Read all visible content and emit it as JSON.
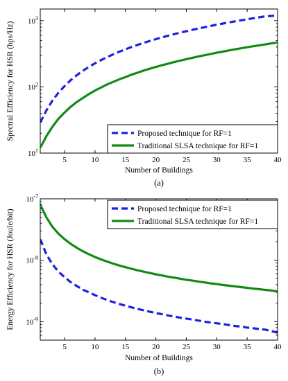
{
  "chart_data": [
    {
      "type": "line",
      "caption": "(a)",
      "xlabel": "Number of Buildings",
      "ylabel": "Spectral Efficiency for HSR (bps/Hz)",
      "xlim": [
        1,
        40
      ],
      "ylim": [
        10,
        1500
      ],
      "yscale": "log",
      "xticks": [
        5,
        10,
        15,
        20,
        25,
        30,
        35,
        40
      ],
      "yticks": [
        {
          "value": 10,
          "base": "10",
          "exp": "1"
        },
        {
          "value": 100,
          "base": "10",
          "exp": "2"
        },
        {
          "value": 1000,
          "base": "10",
          "exp": "3"
        }
      ],
      "legend_position": "bottom-right",
      "x": [
        1,
        2,
        3,
        4,
        5,
        6,
        7,
        8,
        9,
        10,
        11,
        12,
        13,
        14,
        15,
        16,
        17,
        18,
        19,
        20,
        21,
        22,
        23,
        24,
        25,
        26,
        27,
        28,
        29,
        30,
        31,
        32,
        33,
        34,
        35,
        36,
        37,
        38,
        39,
        40
      ],
      "series": [
        {
          "name": "Proposed technique for RF=1",
          "color": "#1f1fe0",
          "dash": "dashed",
          "values": [
            29,
            44,
            62,
            82,
            103,
            126,
            150,
            175,
            200,
            227,
            254,
            282,
            310,
            340,
            369,
            400,
            431,
            462,
            494,
            526,
            559,
            592,
            625,
            659,
            693,
            727,
            762,
            797,
            833,
            868,
            904,
            941,
            977,
            1014,
            1051,
            1089,
            1126,
            1164,
            1180,
            1200
          ]
        },
        {
          "name": "Traditional SLSA technique for RF=1",
          "color": "#128a12",
          "dash": "solid",
          "values": [
            12,
            18,
            25,
            33,
            41,
            50,
            59,
            68,
            78,
            88,
            98,
            109,
            119,
            130,
            141,
            153,
            164,
            176,
            188,
            200,
            212,
            224,
            237,
            249,
            262,
            275,
            288,
            301,
            314,
            328,
            341,
            355,
            369,
            383,
            397,
            411,
            425,
            439,
            454,
            468
          ]
        }
      ]
    },
    {
      "type": "line",
      "caption": "(b)",
      "xlabel": "Number of Buildings",
      "ylabel": "Energy Efficiency for HSR (Joule/bit)",
      "xlim": [
        1,
        40
      ],
      "ylim": [
        5e-10,
        1e-07
      ],
      "yscale": "log",
      "xticks": [
        5,
        10,
        15,
        20,
        25,
        30,
        35,
        40
      ],
      "yticks": [
        {
          "value": 1e-09,
          "base": "10",
          "exp": "-9"
        },
        {
          "value": 1e-08,
          "base": "10",
          "exp": "-8"
        },
        {
          "value": 1e-07,
          "base": "10",
          "exp": "-7"
        }
      ],
      "legend_position": "top-right",
      "x": [
        1,
        2,
        3,
        4,
        5,
        6,
        7,
        8,
        9,
        10,
        11,
        12,
        13,
        14,
        15,
        16,
        17,
        18,
        19,
        20,
        21,
        22,
        23,
        24,
        25,
        26,
        27,
        28,
        29,
        30,
        31,
        32,
        33,
        34,
        35,
        36,
        37,
        38,
        39,
        40
      ],
      "series": [
        {
          "name": "Proposed technique for RF=1",
          "color": "#1f1fe0",
          "dash": "dashed",
          "values": [
            2.2e-08,
            1.25e-08,
            8.6e-09,
            6.5e-09,
            5.3e-09,
            4.4e-09,
            3.8e-09,
            3.3e-09,
            3e-09,
            2.7e-09,
            2.45e-09,
            2.25e-09,
            2.08e-09,
            1.94e-09,
            1.82e-09,
            1.71e-09,
            1.61e-09,
            1.53e-09,
            1.45e-09,
            1.38e-09,
            1.32e-09,
            1.26e-09,
            1.21e-09,
            1.16e-09,
            1.12e-09,
            1.08e-09,
            1.04e-09,
            1e-09,
            9.7e-10,
            9.4e-10,
            9.1e-10,
            8.8e-10,
            8.5e-10,
            8.3e-10,
            8e-10,
            7.8e-10,
            7.6e-10,
            7.4e-10,
            7e-10,
            6.6e-10
          ]
        },
        {
          "name": "Traditional SLSA technique for RF=1",
          "color": "#128a12",
          "dash": "solid",
          "values": [
            8e-08,
            5e-08,
            3.5e-08,
            2.7e-08,
            2.2e-08,
            1.85e-08,
            1.6e-08,
            1.4e-08,
            1.25e-08,
            1.13e-08,
            1.03e-08,
            9.5e-09,
            8.8e-09,
            8.2e-09,
            7.7e-09,
            7.25e-09,
            6.85e-09,
            6.5e-09,
            6.2e-09,
            5.9e-09,
            5.65e-09,
            5.4e-09,
            5.2e-09,
            5e-09,
            4.8e-09,
            4.65e-09,
            4.5e-09,
            4.35e-09,
            4.2e-09,
            4.1e-09,
            3.95e-09,
            3.85e-09,
            3.75e-09,
            3.65e-09,
            3.55e-09,
            3.45e-09,
            3.37e-09,
            3.29e-09,
            3.21e-09,
            3.1e-09
          ]
        }
      ]
    }
  ]
}
